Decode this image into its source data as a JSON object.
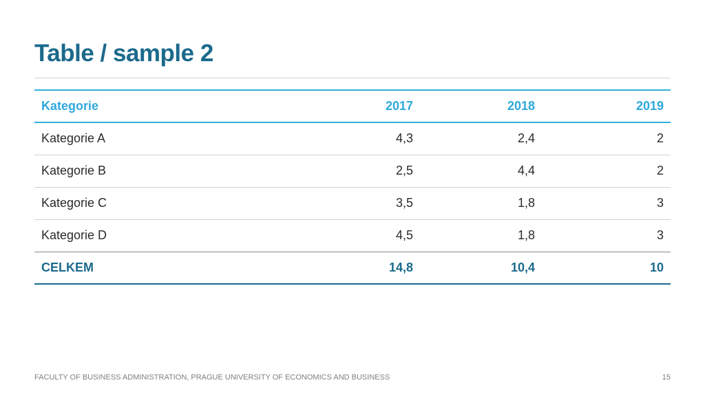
{
  "title": "Table / sample 2",
  "table": {
    "headers": [
      "Kategorie",
      "2017",
      "2018",
      "2019"
    ],
    "rows": [
      [
        "Kategorie A",
        "4,3",
        "2,4",
        "2"
      ],
      [
        "Kategorie B",
        "2,5",
        "4,4",
        "2"
      ],
      [
        "Kategorie C",
        "3,5",
        "1,8",
        "3"
      ],
      [
        "Kategorie D",
        "4,5",
        "1,8",
        "3"
      ]
    ],
    "total": [
      "CELKEM",
      "14,8",
      "10,4",
      "10"
    ]
  },
  "footer": {
    "text": "FACULTY OF BUSINESS ADMINISTRATION, PRAGUE UNIVERSITY OF ECONOMICS AND BUSINESS",
    "page_number": "15"
  },
  "colors": {
    "title": "#1b6a8c",
    "header_accent": "#2fa9db",
    "total_accent": "#1b6a8c"
  }
}
